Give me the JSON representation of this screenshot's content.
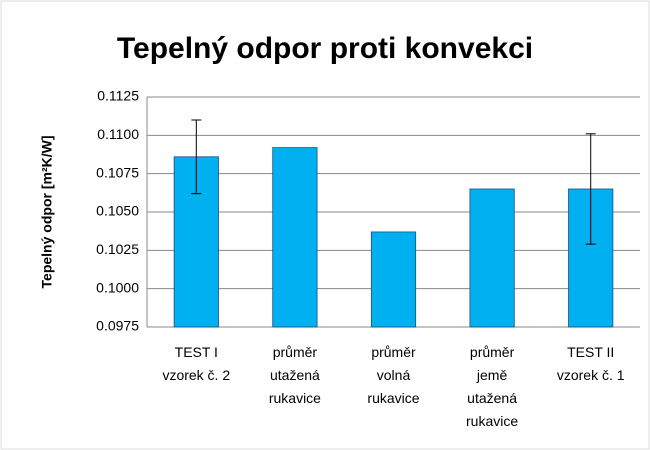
{
  "chart_data": {
    "type": "bar",
    "title": "Tepelný odpor proti konvekci",
    "y_label": "Tepelný odpor [m²K/W]",
    "categories": [
      [
        "TEST I",
        "vzorek č. 2"
      ],
      [
        "průměr",
        "utažená",
        "rukavice"
      ],
      [
        "průměr",
        "volná",
        "rukavice"
      ],
      [
        "průměr",
        "jemě",
        "utažená",
        "rukavice"
      ],
      [
        "TEST II",
        "vzorek č. 1"
      ]
    ],
    "values": [
      0.1086,
      0.1092,
      0.1037,
      0.1065,
      0.1065
    ],
    "errors": [
      0.0024,
      null,
      null,
      null,
      0.0036
    ],
    "color": "#00b0f0",
    "ylim": [
      0.0975,
      0.1125
    ],
    "yticks": [
      0.0975,
      {
        "value": 0.1,
        "label": "0.1000"
      },
      0.1025,
      {
        "value": 0.105,
        "label": "0.1050"
      },
      0.1075,
      {
        "value": 0.11,
        "label": "0.1100"
      },
      0.1125
    ],
    "grid": true
  }
}
